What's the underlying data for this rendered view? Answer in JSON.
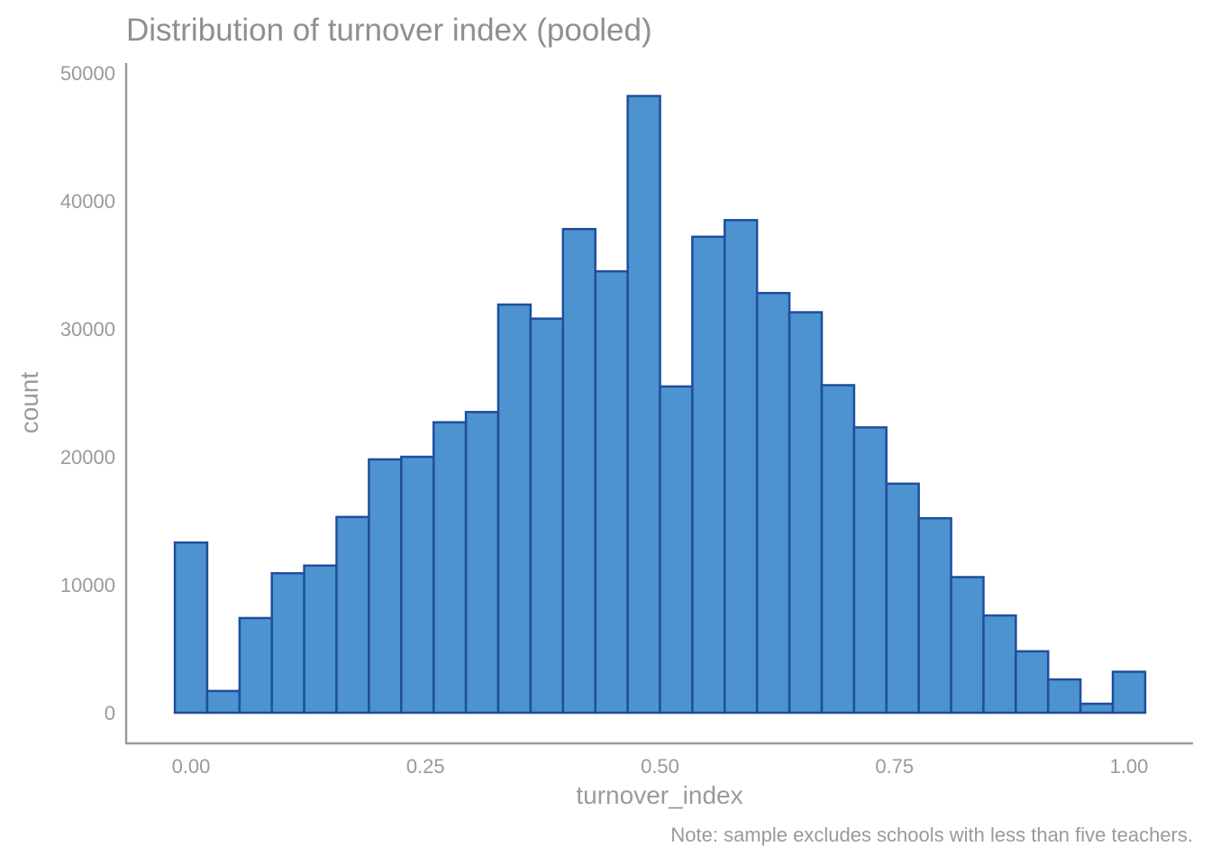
{
  "chart_data": {
    "type": "bar",
    "title": "Distribution of turnover index (pooled)",
    "xlabel": "turnover_index",
    "ylabel": "count",
    "caption": "Note: sample excludes schools with less than five teachers.",
    "xlim": [
      -0.0172,
      1.0172
    ],
    "ylim": [
      0,
      50000
    ],
    "x_ticks": [
      0,
      0.25,
      0.5,
      0.75,
      1
    ],
    "x_tick_labels": [
      "0.00",
      "0.25",
      "0.50",
      "0.75",
      "1.00"
    ],
    "y_ticks": [
      0,
      10000,
      20000,
      30000,
      40000,
      50000
    ],
    "y_tick_labels": [
      "0",
      "10000",
      "20000",
      "30000",
      "40000",
      "50000"
    ],
    "bin_width": 0.0345,
    "bin_centers": [
      0.0,
      0.0345,
      0.069,
      0.1034,
      0.1379,
      0.1724,
      0.2069,
      0.2414,
      0.2759,
      0.3103,
      0.3448,
      0.3793,
      0.4138,
      0.4483,
      0.4828,
      0.5172,
      0.5517,
      0.5862,
      0.6207,
      0.6552,
      0.6897,
      0.7241,
      0.7586,
      0.7931,
      0.8276,
      0.8621,
      0.8966,
      0.931,
      0.9655,
      1.0
    ],
    "values": [
      13300,
      1700,
      7400,
      10900,
      11500,
      15300,
      19800,
      20000,
      22700,
      23500,
      31900,
      30800,
      37800,
      34500,
      48200,
      25500,
      37200,
      38500,
      32800,
      31300,
      25600,
      22300,
      17900,
      15200,
      10600,
      7600,
      4800,
      2600,
      700,
      3200
    ],
    "grid": false,
    "colors": {
      "bar_fill": "#4d93cf",
      "bar_edge": "#1f4e9e",
      "axis": "#9a9a9a",
      "text": "#9a9a9a"
    }
  }
}
